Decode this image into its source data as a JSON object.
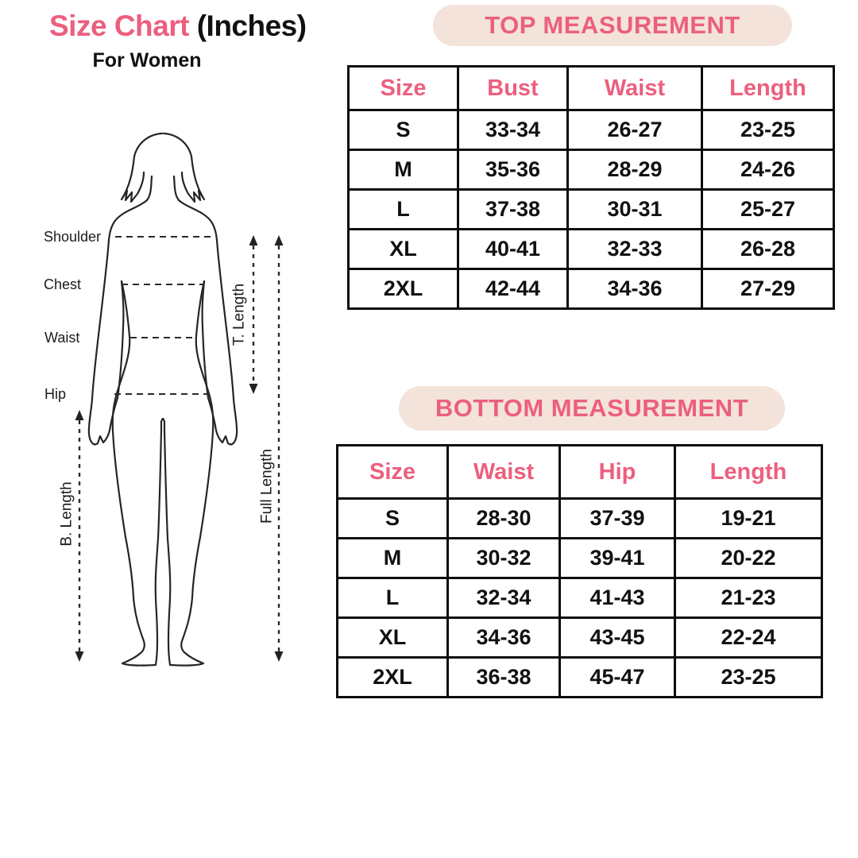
{
  "colors": {
    "accent": "#EC5F7E",
    "pill_bg": "#F3E3DB"
  },
  "title": {
    "highlight": "Size Chart",
    "rest": " (Inches)",
    "subtitle": "For Women"
  },
  "diagram": {
    "labels": {
      "shoulder": "Shoulder",
      "chest": "Chest",
      "waist": "Waist",
      "hip": "Hip",
      "t_length": "T. Length",
      "full_length": "Full Length",
      "b_length": "B. Length"
    }
  },
  "top_section": {
    "heading": "TOP MEASUREMENT",
    "table": {
      "headers": [
        "Size",
        "Bust",
        "Waist",
        "Length"
      ],
      "rows": [
        [
          "S",
          "33-34",
          "26-27",
          "23-25"
        ],
        [
          "M",
          "35-36",
          "28-29",
          "24-26"
        ],
        [
          "L",
          "37-38",
          "30-31",
          "25-27"
        ],
        [
          "XL",
          "40-41",
          "32-33",
          "26-28"
        ],
        [
          "2XL",
          "42-44",
          "34-36",
          "27-29"
        ]
      ]
    }
  },
  "bottom_section": {
    "heading": "BOTTOM MEASUREMENT",
    "table": {
      "headers": [
        "Size",
        "Waist",
        "Hip",
        "Length"
      ],
      "rows": [
        [
          "S",
          "28-30",
          "37-39",
          "19-21"
        ],
        [
          "M",
          "30-32",
          "39-41",
          "20-22"
        ],
        [
          "L",
          "32-34",
          "41-43",
          "21-23"
        ],
        [
          "XL",
          "34-36",
          "43-45",
          "22-24"
        ],
        [
          "2XL",
          "36-38",
          "45-47",
          "23-25"
        ]
      ]
    }
  },
  "chart_data": [
    {
      "type": "table",
      "title": "TOP MEASUREMENT",
      "columns": [
        "Size",
        "Bust",
        "Waist",
        "Length"
      ],
      "rows": [
        [
          "S",
          "33-34",
          "26-27",
          "23-25"
        ],
        [
          "M",
          "35-36",
          "28-29",
          "24-26"
        ],
        [
          "L",
          "37-38",
          "30-31",
          "25-27"
        ],
        [
          "XL",
          "40-41",
          "32-33",
          "26-28"
        ],
        [
          "2XL",
          "42-44",
          "34-36",
          "27-29"
        ]
      ]
    },
    {
      "type": "table",
      "title": "BOTTOM MEASUREMENT",
      "columns": [
        "Size",
        "Waist",
        "Hip",
        "Length"
      ],
      "rows": [
        [
          "S",
          "28-30",
          "37-39",
          "19-21"
        ],
        [
          "M",
          "30-32",
          "39-41",
          "20-22"
        ],
        [
          "L",
          "32-34",
          "41-43",
          "21-23"
        ],
        [
          "XL",
          "34-36",
          "43-45",
          "22-24"
        ],
        [
          "2XL",
          "36-38",
          "45-47",
          "23-25"
        ]
      ]
    }
  ]
}
